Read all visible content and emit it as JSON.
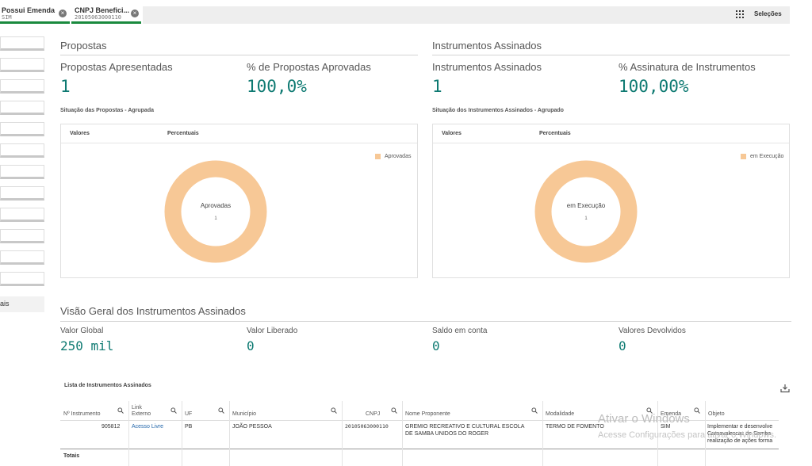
{
  "selections_bar": {
    "chips": [
      {
        "title": "Possui Emenda",
        "value": "SIM"
      },
      {
        "title": "CNPJ Benefici...",
        "value": "20105063000110"
      }
    ],
    "selections_label": "Seleções",
    "clear_icon": "close-circle-icon",
    "selections_icon": "selections-grid-icon"
  },
  "left_panel": {
    "truncated_text": "ais"
  },
  "propostas": {
    "section_title": "Propostas",
    "kpis": [
      {
        "label": "Propostas Apresentadas",
        "value": "1"
      },
      {
        "label": "% de Propostas Aprovadas",
        "value": "100,0%"
      }
    ],
    "chart_title": "Situação das Propostas - Agrupada",
    "tabs": [
      "Valores",
      "Percentuais"
    ],
    "legend": "Aprovadas",
    "donut_label": "Aprovadas",
    "donut_value": "1"
  },
  "instrumentos": {
    "section_title": "Instrumentos Assinados",
    "kpis": [
      {
        "label": "Instrumentos Assinados",
        "value": "1"
      },
      {
        "label": "% Assinatura de Instrumentos",
        "value": "100,00%"
      }
    ],
    "chart_title": "Situação dos Instrumentos Assinados - Agrupado",
    "tabs": [
      "Valores",
      "Percentuais"
    ],
    "legend": "em Execução",
    "donut_label": "em Execução",
    "donut_value": "1"
  },
  "visao_geral": {
    "section_title": "Visão Geral dos Instrumentos Assinados",
    "kpis": [
      {
        "label": "Valor Global",
        "value": "250 mil"
      },
      {
        "label": "Valor Liberado",
        "value": "0"
      },
      {
        "label": "Saldo em conta",
        "value": "0"
      },
      {
        "label": "Valores Devolvidos",
        "value": "0"
      }
    ]
  },
  "lista": {
    "title": "Lista de Instrumentos Assinados",
    "download_icon": "download-icon",
    "headers": [
      {
        "l1": "",
        "l2": "Nº Instrumento"
      },
      {
        "l1": "Link",
        "l2": "Externo"
      },
      {
        "l1": "",
        "l2": "UF"
      },
      {
        "l1": "",
        "l2": "Município"
      },
      {
        "l1": "",
        "l2": "CNPJ"
      },
      {
        "l1": "",
        "l2": "Nome Proponente"
      },
      {
        "l1": "",
        "l2": "Modalidade"
      },
      {
        "l1": "",
        "l2": "Emenda"
      },
      {
        "l1": "",
        "l2": "Objeto"
      }
    ],
    "row": {
      "numero": "905812",
      "link": "Acesso Livre",
      "uf": "PB",
      "municipio": "JOÃO PESSOA",
      "cnpj": "20105063000110",
      "proponente_l1": "GREMIO RECREATIVO E CULTURAL ESCOLA",
      "proponente_l2": "DE SAMBA UNIDOS DO ROGER",
      "modalidade": "TERMO DE FOMENTO",
      "emenda": "SIM",
      "objeto_l1": "Implementar e desenvolve",
      "objeto_l2": "Carnavalescas de Samba",
      "objeto_l3": "realização de ações forma"
    },
    "totals_label": "Totais"
  },
  "watermark": {
    "line1": "Ativar o Windows",
    "line2": "Acesse Configurações para ativar o Windows."
  },
  "colors": {
    "accent": "#0e7a72",
    "donut": "#f7c896",
    "chip_bar": "#1a8a3e"
  }
}
